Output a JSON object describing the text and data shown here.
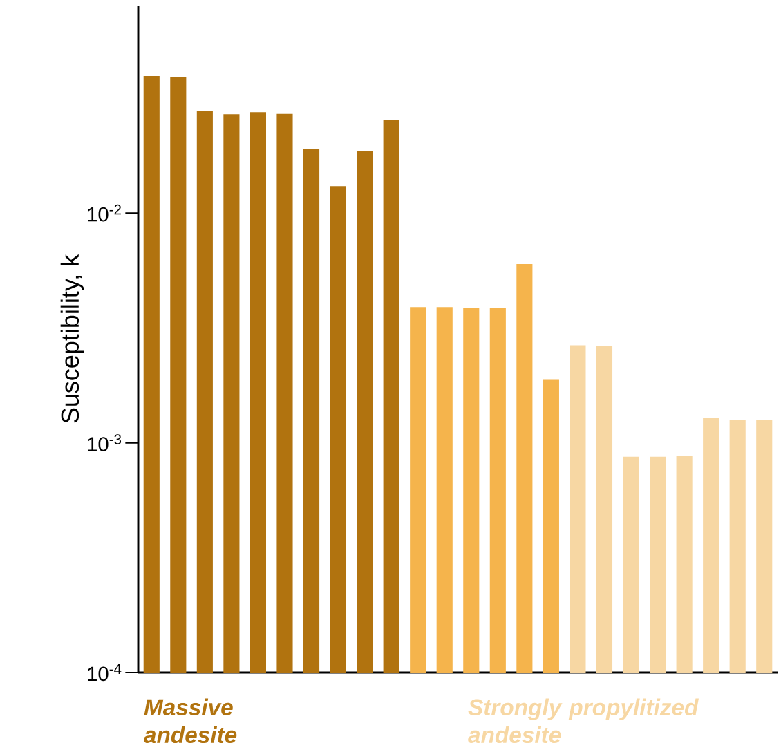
{
  "chart_data": {
    "type": "bar",
    "ylabel": "Susceptibility, k",
    "log": true,
    "categories": [
      null,
      null,
      null,
      null,
      null,
      null,
      null,
      null,
      null,
      null,
      null,
      null,
      null,
      null,
      null,
      null,
      null,
      null,
      null,
      null,
      null,
      null,
      null,
      null
    ],
    "series": [
      {
        "name": "Massive andesite",
        "color": "#b1730f",
        "values": [
          0.0395,
          0.039,
          0.0277,
          0.0269,
          0.0275,
          0.027,
          0.019,
          0.0131,
          0.0186,
          0.0255,
          null,
          null,
          null,
          null,
          null,
          null,
          null,
          null,
          null,
          null,
          null,
          null,
          null,
          null
        ]
      },
      {
        "color": "#f5b44c",
        "values": [
          null,
          null,
          null,
          null,
          null,
          null,
          null,
          null,
          null,
          null,
          0.0039,
          0.0039,
          0.00385,
          0.00385,
          0.006,
          0.00188,
          null,
          null,
          null,
          null,
          null,
          null,
          null,
          null
        ]
      },
      {
        "name": "Strongly propylitized andesite",
        "color": "#f7d7a3",
        "values": [
          null,
          null,
          null,
          null,
          null,
          null,
          null,
          null,
          null,
          null,
          null,
          null,
          null,
          null,
          null,
          null,
          0.00266,
          0.00263,
          0.00087,
          0.00087,
          0.00088,
          0.00128,
          0.00126,
          0.00126
        ]
      }
    ],
    "ylim": [
      0.0001,
      0.08
    ],
    "yticks": [
      {
        "value": 0.0001,
        "label": "10$^{-4}$"
      },
      {
        "value": 0.001,
        "label": "10$^{-3}$"
      },
      {
        "value": 0.01,
        "label": "10$^{-2}$"
      }
    ]
  }
}
